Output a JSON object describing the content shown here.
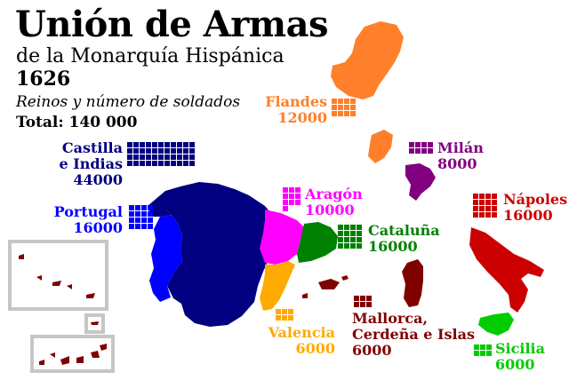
{
  "header": {
    "title": "Unión de Armas",
    "subtitle": "de la Monarquía Hispánica",
    "year": "1626",
    "caption": "Reinos y número de soldados",
    "total": "Total: 140 000"
  },
  "kingdoms": {
    "castilla": {
      "name_line1": "Castilla",
      "name_line2": "e Indias",
      "soldiers": "44000",
      "squares": 44,
      "color": "#000080"
    },
    "portugal": {
      "name": "Portugal",
      "soldiers": "16000",
      "squares": 16,
      "color": "#0000ff"
    },
    "aragon": {
      "name": "Aragón",
      "soldiers": "10000",
      "squares": 10,
      "color": "#ff00ff"
    },
    "cataluna": {
      "name": "Cataluña",
      "soldiers": "16000",
      "squares": 16,
      "color": "#008000"
    },
    "valencia": {
      "name": "Valencia",
      "soldiers": "6000",
      "squares": 6,
      "color": "#ffaa00"
    },
    "mallorca": {
      "name_line1": "Mallorca,",
      "name_line2": "Cerdeña e Islas",
      "soldiers": "6000",
      "squares": 6,
      "color": "#800000"
    },
    "flandes": {
      "name": "Flandes",
      "soldiers": "12000",
      "squares": 12,
      "color": "#ff7f2a"
    },
    "milan": {
      "name": "Milán",
      "soldiers": "8000",
      "squares": 8,
      "color": "#800080"
    },
    "napoles": {
      "name": "Nápoles",
      "soldiers": "16000",
      "squares": 16,
      "color": "#cc0000"
    },
    "sicilia": {
      "name": "Sicilia",
      "soldiers": "6000",
      "squares": 6,
      "color": "#00cc00"
    }
  }
}
